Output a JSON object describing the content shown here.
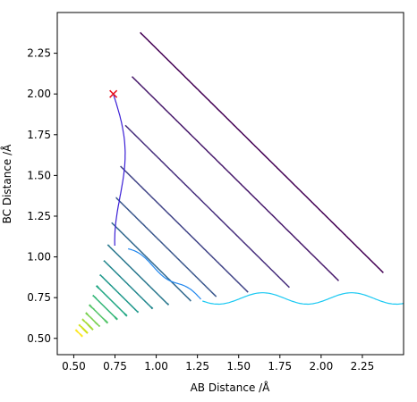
{
  "chart_data": {
    "type": "contour",
    "title": "",
    "xlabel": "AB Distance /Å",
    "ylabel": "BC Distance /Å",
    "xlim": [
      0.4,
      2.5
    ],
    "ylim": [
      0.4,
      2.5
    ],
    "xticks": [
      "0.50",
      "0.75",
      "1.00",
      "1.25",
      "1.50",
      "1.75",
      "2.00",
      "2.25"
    ],
    "xtick_values": [
      0.5,
      0.75,
      1.0,
      1.25,
      1.5,
      1.75,
      2.0,
      2.25
    ],
    "yticks": [
      "0.50",
      "0.75",
      "1.00",
      "1.25",
      "1.50",
      "1.75",
      "2.00",
      "2.25"
    ],
    "ytick_values": [
      0.5,
      0.75,
      1.0,
      1.25,
      1.5,
      1.75,
      2.0,
      2.25
    ],
    "colormap": "viridis",
    "grid": false,
    "start_marker": {
      "x": 0.74,
      "y": 2.0,
      "symbol": "x",
      "color": "#e8101e"
    },
    "contour_levels": [
      {
        "a": 0.84,
        "b": 0.84,
        "d": 0.8,
        "x_min": 0.8,
        "y_min": 0.8,
        "color": "#440154"
      },
      {
        "a": 0.8,
        "b": 0.8,
        "d": 0.68,
        "x_min": 0.72,
        "y_min": 0.72,
        "color": "#481a6c"
      },
      {
        "a": 0.77,
        "b": 0.77,
        "d": 0.54,
        "x_min": 0.67,
        "y_min": 0.67,
        "color": "#472f7d"
      },
      {
        "a": 0.75,
        "b": 0.75,
        "d": 0.42,
        "x_min": 0.64,
        "y_min": 0.64,
        "color": "#414487"
      },
      {
        "a": 0.73,
        "b": 0.73,
        "d": 0.33,
        "x_min": 0.615,
        "y_min": 0.615,
        "color": "#39568c"
      },
      {
        "a": 0.71,
        "b": 0.71,
        "d": 0.26,
        "x_min": 0.6,
        "y_min": 0.6,
        "color": "#31688e"
      },
      {
        "a": 0.69,
        "b": 0.69,
        "d": 0.2,
        "x_min": 0.59,
        "y_min": 0.59,
        "color": "#2a788e"
      },
      {
        "a": 0.67,
        "b": 0.67,
        "d": 0.16,
        "x_min": 0.58,
        "y_min": 0.58,
        "color": "#23888e"
      },
      {
        "a": 0.65,
        "b": 0.65,
        "d": 0.125,
        "x_min": 0.57,
        "y_min": 0.57,
        "color": "#1f988b"
      },
      {
        "a": 0.63,
        "b": 0.63,
        "d": 0.1,
        "x_min": 0.56,
        "y_min": 0.56,
        "color": "#22a884"
      },
      {
        "a": 0.61,
        "b": 0.61,
        "d": 0.08,
        "x_min": 0.55,
        "y_min": 0.55,
        "color": "#35b779"
      },
      {
        "a": 0.59,
        "b": 0.59,
        "d": 0.06,
        "x_min": 0.54,
        "y_min": 0.54,
        "color": "#54c568"
      },
      {
        "a": 0.57,
        "b": 0.57,
        "d": 0.045,
        "x_min": 0.53,
        "y_min": 0.53,
        "color": "#7ad151"
      },
      {
        "a": 0.55,
        "b": 0.55,
        "d": 0.035,
        "x_min": 0.52,
        "y_min": 0.52,
        "color": "#a5db36"
      },
      {
        "a": 0.53,
        "b": 0.53,
        "d": 0.028,
        "x_min": 0.505,
        "y_min": 0.505,
        "color": "#d2e21b"
      },
      {
        "a": 0.51,
        "b": 0.51,
        "d": 0.022,
        "x_min": 0.49,
        "y_min": 0.49,
        "color": "#fde725"
      }
    ],
    "trajectory_colors": [
      "#3b1fd6",
      "#1f86ee",
      "#18c8f2"
    ]
  }
}
